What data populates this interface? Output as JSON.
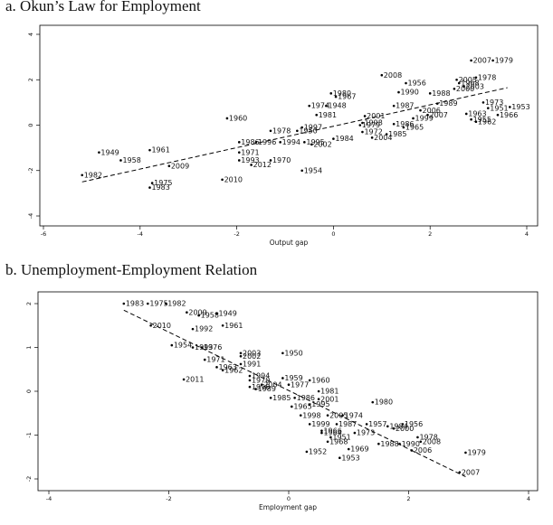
{
  "chart_data": [
    {
      "type": "scatter",
      "title": "a. Okun’s Law for Employment",
      "xlabel": "Output gap",
      "ylabel": "",
      "xlim": [
        -6,
        4
      ],
      "ylim": [
        -4,
        4
      ],
      "xticks": [
        -6,
        -4,
        -2,
        0,
        2,
        4
      ],
      "yticks": [
        -4,
        -2,
        0,
        2,
        4
      ],
      "fit_line": {
        "x": [
          -5.2,
          3.6
        ],
        "y": [
          -2.5,
          1.65
        ],
        "style": "dashed"
      },
      "points": [
        {
          "label": "1982",
          "x": -5.2,
          "y": -2.2
        },
        {
          "label": "1949",
          "x": -4.85,
          "y": -1.2
        },
        {
          "label": "1958",
          "x": -4.4,
          "y": -1.55
        },
        {
          "label": "1961",
          "x": -3.8,
          "y": -1.1
        },
        {
          "label": "1975",
          "x": -3.75,
          "y": -2.55
        },
        {
          "label": "1983",
          "x": -3.8,
          "y": -2.75
        },
        {
          "label": "2009",
          "x": -3.4,
          "y": -1.8
        },
        {
          "label": "2010",
          "x": -2.3,
          "y": -2.4
        },
        {
          "label": "1960",
          "x": -2.2,
          "y": 0.3
        },
        {
          "label": "1954",
          "x": -0.65,
          "y": -2.0
        },
        {
          "label": "1986",
          "x": -1.95,
          "y": -0.75
        },
        {
          "label": "1996",
          "x": -1.6,
          "y": -0.75
        },
        {
          "label": "1994",
          "x": -1.1,
          "y": -0.75
        },
        {
          "label": "1971",
          "x": -1.95,
          "y": -1.2
        },
        {
          "label": "1993",
          "x": -1.95,
          "y": -1.55
        },
        {
          "label": "1970",
          "x": -1.3,
          "y": -1.55
        },
        {
          "label": "2012",
          "x": -1.7,
          "y": -1.75
        },
        {
          "label": "1995",
          "x": -0.6,
          "y": -0.75
        },
        {
          "label": "2002",
          "x": -0.45,
          "y": -0.85
        },
        {
          "label": "1978",
          "x": -1.3,
          "y": -0.25
        },
        {
          "label": "1950",
          "x": -0.75,
          "y": -0.25
        },
        {
          "label": "1997",
          "x": -0.65,
          "y": -0.1
        },
        {
          "label": "1974",
          "x": -0.5,
          "y": 0.85
        },
        {
          "label": "1948",
          "x": -0.15,
          "y": 0.85
        },
        {
          "label": "1981",
          "x": -0.35,
          "y": 0.45
        },
        {
          "label": "1980",
          "x": -0.05,
          "y": 1.4
        },
        {
          "label": "1967",
          "x": 0.05,
          "y": 1.25
        },
        {
          "label": "1984",
          "x": 0.0,
          "y": -0.6
        },
        {
          "label": "1998",
          "x": 0.6,
          "y": 0.1
        },
        {
          "label": "1979",
          "x": 0.55,
          "y": 0.0
        },
        {
          "label": "1972",
          "x": 0.6,
          "y": -0.3
        },
        {
          "label": "2004",
          "x": 0.8,
          "y": -0.55
        },
        {
          "label": "2001",
          "x": 0.65,
          "y": 0.4
        },
        {
          "label": "1985",
          "x": 1.1,
          "y": -0.4
        },
        {
          "label": "1965",
          "x": 1.45,
          "y": -0.1
        },
        {
          "label": "1986",
          "x": 1.25,
          "y": 0.05
        },
        {
          "label": "1987",
          "x": 1.25,
          "y": 0.85
        },
        {
          "label": "2008",
          "x": 1.0,
          "y": 2.2
        },
        {
          "label": "1956",
          "x": 1.5,
          "y": 1.85
        },
        {
          "label": "1990",
          "x": 1.35,
          "y": 1.45
        },
        {
          "label": "1988",
          "x": 2.0,
          "y": 1.4
        },
        {
          "label": "1989",
          "x": 2.15,
          "y": 0.95
        },
        {
          "label": "1999",
          "x": 1.65,
          "y": 0.3
        },
        {
          "label": "2006",
          "x": 1.8,
          "y": 0.65
        },
        {
          "label": "2007",
          "x": 1.95,
          "y": 0.45
        },
        {
          "label": "2000",
          "x": 2.5,
          "y": 1.6
        },
        {
          "label": "1978",
          "x": 2.95,
          "y": 2.1
        },
        {
          "label": "2005",
          "x": 2.55,
          "y": 2.0
        },
        {
          "label": "1968",
          "x": 2.6,
          "y": 1.85
        },
        {
          "label": "2003",
          "x": 2.7,
          "y": 1.7
        },
        {
          "label": "1973",
          "x": 3.1,
          "y": 1.0
        },
        {
          "label": "1951",
          "x": 3.2,
          "y": 0.75
        },
        {
          "label": "1953",
          "x": 3.65,
          "y": 0.8
        },
        {
          "label": "1966",
          "x": 3.4,
          "y": 0.45
        },
        {
          "label": "1963",
          "x": 2.75,
          "y": 0.5
        },
        {
          "label": "1955",
          "x": 2.85,
          "y": 0.25
        },
        {
          "label": "1962",
          "x": 2.95,
          "y": 0.15
        },
        {
          "label": "2007",
          "x": 2.85,
          "y": 2.85
        },
        {
          "label": "1979",
          "x": 3.3,
          "y": 2.85
        }
      ]
    },
    {
      "type": "scatter",
      "title": "b. Unemployment-Employment Relation",
      "xlabel": "Employment gap",
      "ylabel": "",
      "xlim": [
        -4,
        4
      ],
      "ylim": [
        -2,
        2
      ],
      "xticks": [
        -4,
        -2,
        0,
        2,
        4
      ],
      "yticks": [
        -2,
        -1,
        0,
        1,
        2
      ],
      "fit_line": {
        "x": [
          -2.75,
          2.95
        ],
        "y": [
          1.85,
          -1.95
        ],
        "style": "dashed"
      },
      "points": [
        {
          "label": "1983",
          "x": -2.75,
          "y": 2.0
        },
        {
          "label": "1975",
          "x": -2.35,
          "y": 2.0
        },
        {
          "label": "1982",
          "x": -2.05,
          "y": 2.0
        },
        {
          "label": "2009",
          "x": -1.7,
          "y": 1.8
        },
        {
          "label": "1958",
          "x": -1.5,
          "y": 1.73
        },
        {
          "label": "1949",
          "x": -1.2,
          "y": 1.78
        },
        {
          "label": "2010",
          "x": -2.3,
          "y": 1.5
        },
        {
          "label": "1992",
          "x": -1.6,
          "y": 1.42
        },
        {
          "label": "1961",
          "x": -1.1,
          "y": 1.5
        },
        {
          "label": "1954",
          "x": -1.95,
          "y": 1.05
        },
        {
          "label": "1993",
          "x": -1.6,
          "y": 1.0
        },
        {
          "label": "1976",
          "x": -1.45,
          "y": 1.0
        },
        {
          "label": "1971",
          "x": -1.4,
          "y": 0.72
        },
        {
          "label": "2003",
          "x": -0.8,
          "y": 0.87
        },
        {
          "label": "1950",
          "x": -0.1,
          "y": 0.87
        },
        {
          "label": "2002",
          "x": -0.8,
          "y": 0.8
        },
        {
          "label": "1991",
          "x": -0.8,
          "y": 0.62
        },
        {
          "label": "1963",
          "x": -1.2,
          "y": 0.55
        },
        {
          "label": "1962",
          "x": -1.1,
          "y": 0.48
        },
        {
          "label": "2011",
          "x": -1.75,
          "y": 0.27
        },
        {
          "label": "1994",
          "x": -0.65,
          "y": 0.35
        },
        {
          "label": "1970",
          "x": -0.65,
          "y": 0.25
        },
        {
          "label": "1959",
          "x": -0.1,
          "y": 0.3
        },
        {
          "label": "1960",
          "x": 0.35,
          "y": 0.25
        },
        {
          "label": "1977",
          "x": 0.0,
          "y": 0.15
        },
        {
          "label": "1996",
          "x": -0.65,
          "y": 0.1
        },
        {
          "label": "2004",
          "x": -0.45,
          "y": 0.15
        },
        {
          "label": "1989",
          "x": -0.55,
          "y": 0.05
        },
        {
          "label": "1981",
          "x": 0.5,
          "y": 0.0
        },
        {
          "label": "1985",
          "x": -0.3,
          "y": -0.15
        },
        {
          "label": "1986",
          "x": 0.1,
          "y": -0.15
        },
        {
          "label": "2001",
          "x": 0.5,
          "y": -0.18
        },
        {
          "label": "1965",
          "x": 0.05,
          "y": -0.35
        },
        {
          "label": "1995",
          "x": 0.35,
          "y": -0.3
        },
        {
          "label": "1980",
          "x": 1.4,
          "y": -0.25
        },
        {
          "label": "1998",
          "x": 0.2,
          "y": -0.55
        },
        {
          "label": "2005",
          "x": 0.65,
          "y": -0.55
        },
        {
          "label": "1974",
          "x": 0.9,
          "y": -0.55
        },
        {
          "label": "1999",
          "x": 0.35,
          "y": -0.75
        },
        {
          "label": "1987",
          "x": 0.8,
          "y": -0.75
        },
        {
          "label": "1957",
          "x": 1.3,
          "y": -0.75
        },
        {
          "label": "1956",
          "x": 1.9,
          "y": -0.75
        },
        {
          "label": "1984",
          "x": 1.65,
          "y": -0.8
        },
        {
          "label": "2000",
          "x": 1.75,
          "y": -0.85
        },
        {
          "label": "1966",
          "x": 0.55,
          "y": -0.9
        },
        {
          "label": "1973",
          "x": 1.1,
          "y": -0.95
        },
        {
          "label": "1964",
          "x": 0.55,
          "y": -0.95
        },
        {
          "label": "1951",
          "x": 0.7,
          "y": -1.05
        },
        {
          "label": "1968",
          "x": 0.65,
          "y": -1.15
        },
        {
          "label": "1978",
          "x": 2.15,
          "y": -1.05
        },
        {
          "label": "2008",
          "x": 2.2,
          "y": -1.15
        },
        {
          "label": "1988",
          "x": 1.5,
          "y": -1.2
        },
        {
          "label": "1990",
          "x": 1.85,
          "y": -1.2
        },
        {
          "label": "2006",
          "x": 2.05,
          "y": -1.35
        },
        {
          "label": "1952",
          "x": 0.3,
          "y": -1.38
        },
        {
          "label": "1969",
          "x": 1.0,
          "y": -1.32
        },
        {
          "label": "1953",
          "x": 0.85,
          "y": -1.52
        },
        {
          "label": "1979",
          "x": 2.95,
          "y": -1.4
        },
        {
          "label": "2007",
          "x": 2.85,
          "y": -1.85
        }
      ]
    }
  ]
}
